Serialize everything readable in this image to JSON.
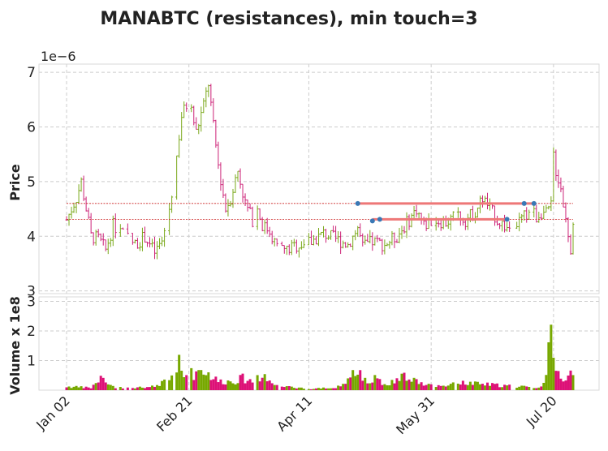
{
  "chart_data": {
    "type": "ohlc",
    "title": "MANABTC (resistances), min touch=3",
    "price_panel": {
      "ylabel": "Price",
      "scale_label": "1e−6",
      "ylim": [
        2.95,
        7.15
      ],
      "yticks": [
        3,
        4,
        5,
        6,
        7
      ],
      "bar_colors": {
        "up": "#7aa81a",
        "down": "#cc2277"
      }
    },
    "volume_panel": {
      "ylabel": "Volume x 1e8",
      "ylim": [
        0,
        3.15
      ],
      "yticks": [
        1,
        2,
        3
      ],
      "bar_colors": {
        "up": "#77a800",
        "down": "#dd1177"
      }
    },
    "x_axis": {
      "start_date": "2019-01-02",
      "total_days": 207,
      "ticks": [
        {
          "label": "Jan 02",
          "day": 0
        },
        {
          "label": "Feb 21",
          "day": 50
        },
        {
          "label": "Apr 11",
          "day": 99
        },
        {
          "label": "May 31",
          "day": 149
        },
        {
          "label": "Jul 20",
          "day": 199
        }
      ]
    },
    "grid": true,
    "resistance_levels": [
      {
        "price": 4.6,
        "color": "#ee7777",
        "segment_days": [
          119,
          191
        ],
        "touches": [
          {
            "day": 119,
            "price": 4.6
          },
          {
            "day": 187,
            "price": 4.6
          },
          {
            "day": 191,
            "price": 4.6
          }
        ]
      },
      {
        "price": 4.31,
        "color": "#ee7777",
        "segment_days": [
          125,
          180
        ],
        "touches": [
          {
            "day": 125,
            "price": 4.28
          },
          {
            "day": 128,
            "price": 4.31
          },
          {
            "day": 180,
            "price": 4.31
          }
        ]
      }
    ],
    "price_anchors": [
      [
        0,
        4.3
      ],
      [
        4,
        4.7
      ],
      [
        6,
        5.0
      ],
      [
        8,
        4.5
      ],
      [
        10,
        4.0
      ],
      [
        13,
        3.95
      ],
      [
        16,
        3.75
      ],
      [
        19,
        4.2
      ],
      [
        23,
        4.05
      ],
      [
        28,
        3.85
      ],
      [
        32,
        4.0
      ],
      [
        36,
        3.7
      ],
      [
        39,
        3.9
      ],
      [
        42,
        4.5
      ],
      [
        44,
        5.1
      ],
      [
        47,
        6.2
      ],
      [
        50,
        6.5
      ],
      [
        53,
        5.9
      ],
      [
        56,
        6.4
      ],
      [
        58,
        6.8
      ],
      [
        60,
        6.0
      ],
      [
        62,
        5.3
      ],
      [
        65,
        4.5
      ],
      [
        67,
        4.7
      ],
      [
        70,
        5.2
      ],
      [
        73,
        4.6
      ],
      [
        76,
        4.3
      ],
      [
        78,
        4.5
      ],
      [
        80,
        4.2
      ],
      [
        83,
        4.1
      ],
      [
        86,
        3.8
      ],
      [
        90,
        3.75
      ],
      [
        95,
        3.85
      ],
      [
        100,
        3.9
      ],
      [
        105,
        4.05
      ],
      [
        110,
        3.95
      ],
      [
        115,
        3.85
      ],
      [
        119,
        4.15
      ],
      [
        121,
        3.8
      ],
      [
        125,
        3.9
      ],
      [
        130,
        3.85
      ],
      [
        135,
        4.0
      ],
      [
        140,
        4.3
      ],
      [
        143,
        4.5
      ],
      [
        146,
        4.2
      ],
      [
        150,
        4.3
      ],
      [
        155,
        4.25
      ],
      [
        160,
        4.4
      ],
      [
        163,
        4.3
      ],
      [
        167,
        4.45
      ],
      [
        170,
        4.7
      ],
      [
        173,
        4.5
      ],
      [
        176,
        4.3
      ],
      [
        180,
        4.15
      ],
      [
        183,
        4.2
      ],
      [
        187,
        4.35
      ],
      [
        190,
        4.5
      ],
      [
        192,
        4.35
      ],
      [
        194,
        4.45
      ],
      [
        196,
        4.4
      ],
      [
        198,
        4.55
      ],
      [
        199,
        5.5
      ],
      [
        200,
        5.2
      ],
      [
        202,
        4.9
      ],
      [
        204,
        4.3
      ],
      [
        206,
        3.8
      ],
      [
        207,
        4.1
      ]
    ],
    "volume_anchors": [
      [
        0,
        0.12
      ],
      [
        10,
        0.08
      ],
      [
        14,
        0.4
      ],
      [
        20,
        0.08
      ],
      [
        30,
        0.1
      ],
      [
        36,
        0.12
      ],
      [
        41,
        0.35
      ],
      [
        44,
        0.7
      ],
      [
        46,
        0.9
      ],
      [
        48,
        0.6
      ],
      [
        52,
        0.55
      ],
      [
        55,
        0.75
      ],
      [
        58,
        0.55
      ],
      [
        62,
        0.3
      ],
      [
        68,
        0.3
      ],
      [
        72,
        0.4
      ],
      [
        76,
        0.3
      ],
      [
        80,
        0.45
      ],
      [
        84,
        0.3
      ],
      [
        88,
        0.12
      ],
      [
        95,
        0.08
      ],
      [
        100,
        0.05
      ],
      [
        110,
        0.08
      ],
      [
        116,
        0.4
      ],
      [
        119,
        0.8
      ],
      [
        121,
        0.3
      ],
      [
        126,
        0.4
      ],
      [
        130,
        0.2
      ],
      [
        137,
        0.45
      ],
      [
        141,
        0.4
      ],
      [
        145,
        0.2
      ],
      [
        150,
        0.15
      ],
      [
        160,
        0.25
      ],
      [
        170,
        0.2
      ],
      [
        180,
        0.15
      ],
      [
        188,
        0.12
      ],
      [
        194,
        0.1
      ],
      [
        196,
        0.4
      ],
      [
        198,
        2.8
      ],
      [
        199,
        0.9
      ],
      [
        201,
        0.7
      ],
      [
        203,
        0.4
      ],
      [
        205,
        0.6
      ],
      [
        207,
        0.7
      ]
    ]
  }
}
